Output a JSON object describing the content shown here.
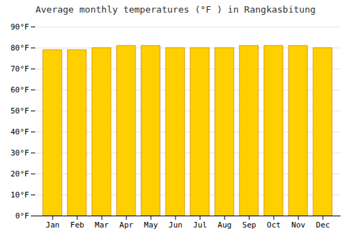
{
  "chart_data": {
    "type": "bar",
    "title": "Average monthly temperatures (°F ) in Rangkasbitung",
    "categories": [
      "Jan",
      "Feb",
      "Mar",
      "Apr",
      "May",
      "Jun",
      "Jul",
      "Aug",
      "Sep",
      "Oct",
      "Nov",
      "Dec"
    ],
    "values": [
      79,
      79,
      80,
      81,
      81,
      80,
      80,
      80,
      81,
      81,
      81,
      80
    ],
    "color": "#FFD000",
    "ylim": [
      0,
      90
    ],
    "yticks": [
      {
        "value": 0,
        "label": "0°F"
      },
      {
        "value": 10,
        "label": "10°F"
      },
      {
        "value": 20,
        "label": "20°F"
      },
      {
        "value": 30,
        "label": "30°F"
      },
      {
        "value": 40,
        "label": "40°F"
      },
      {
        "value": 50,
        "label": "50°F"
      },
      {
        "value": 60,
        "label": "60°F"
      },
      {
        "value": 70,
        "label": "70°F"
      },
      {
        "value": 80,
        "label": "80°F"
      },
      {
        "value": 90,
        "label": "90°F"
      }
    ],
    "grid": true
  }
}
